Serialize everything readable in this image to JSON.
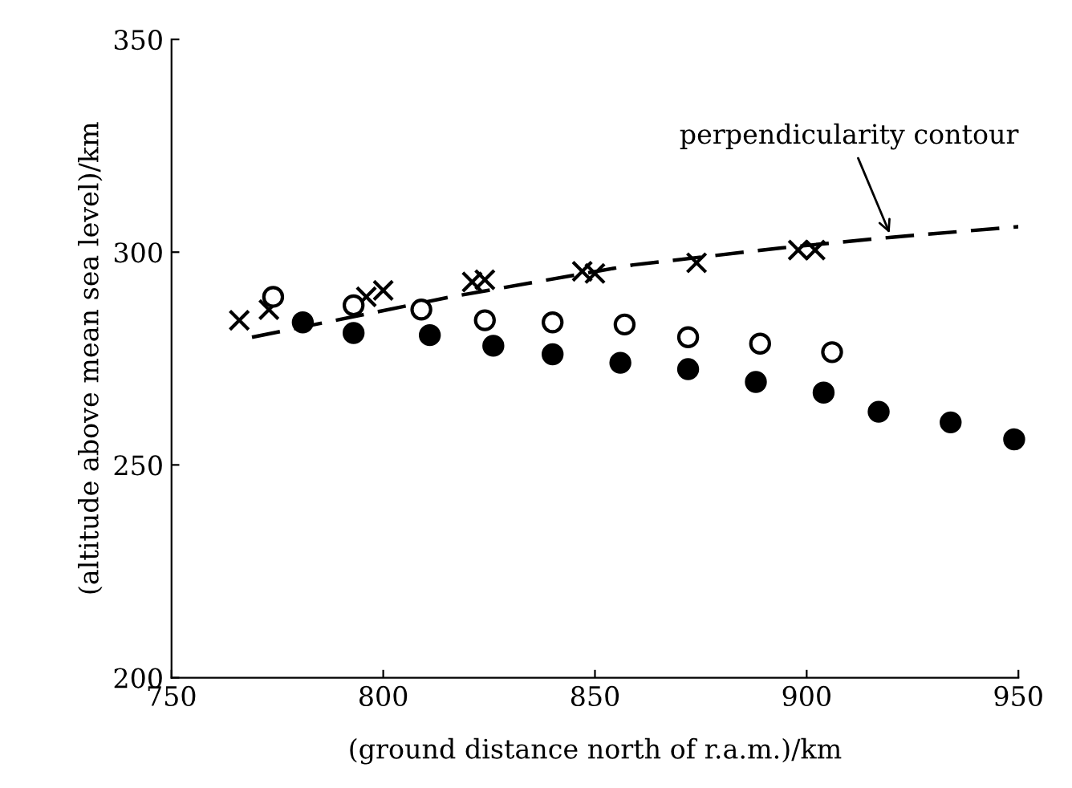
{
  "chart_data": {
    "type": "scatter",
    "xlabel": "(ground distance north of r.a.m.)/km",
    "ylabel": "(altitude above mean sea level)/km",
    "xlim": [
      750,
      950
    ],
    "ylim": [
      200,
      350
    ],
    "xticks": [
      750,
      800,
      850,
      900,
      950
    ],
    "yticks": [
      200,
      250,
      300,
      350
    ],
    "grid": false,
    "series": [
      {
        "marker": "cross",
        "color": "#000000",
        "x": [
          766,
          773,
          796,
          800,
          821,
          824,
          847,
          850,
          874,
          898,
          902
        ],
        "values": [
          284,
          286.5,
          289.5,
          291,
          293,
          293.5,
          295.5,
          295,
          297.5,
          300.5,
          300.5
        ]
      },
      {
        "marker": "circle",
        "color": "#ffffff",
        "x": [
          774,
          793,
          809,
          824,
          840,
          857,
          872,
          889,
          906
        ],
        "values": [
          289.5,
          287.5,
          286.5,
          284,
          283.5,
          283,
          280,
          278.5,
          276.5
        ]
      },
      {
        "marker": "circle",
        "color": "#000000",
        "x": [
          781,
          793,
          811,
          826,
          840,
          856,
          872,
          888,
          904,
          917,
          934,
          949
        ],
        "values": [
          283.5,
          281,
          280.5,
          278,
          276,
          274,
          272.5,
          269.5,
          267,
          262.5,
          260,
          256
        ]
      },
      {
        "type": "line",
        "marker": "none",
        "line_style": "dashed",
        "color": "#000000",
        "x": [
          769,
          816,
          859,
          894,
          920,
          950
        ],
        "values": [
          280,
          289.5,
          297,
          301,
          303.5,
          306
        ]
      }
    ],
    "annotations": [
      {
        "text": "perpendicularity contour",
        "x": 920,
        "y": 303.5
      }
    ]
  }
}
